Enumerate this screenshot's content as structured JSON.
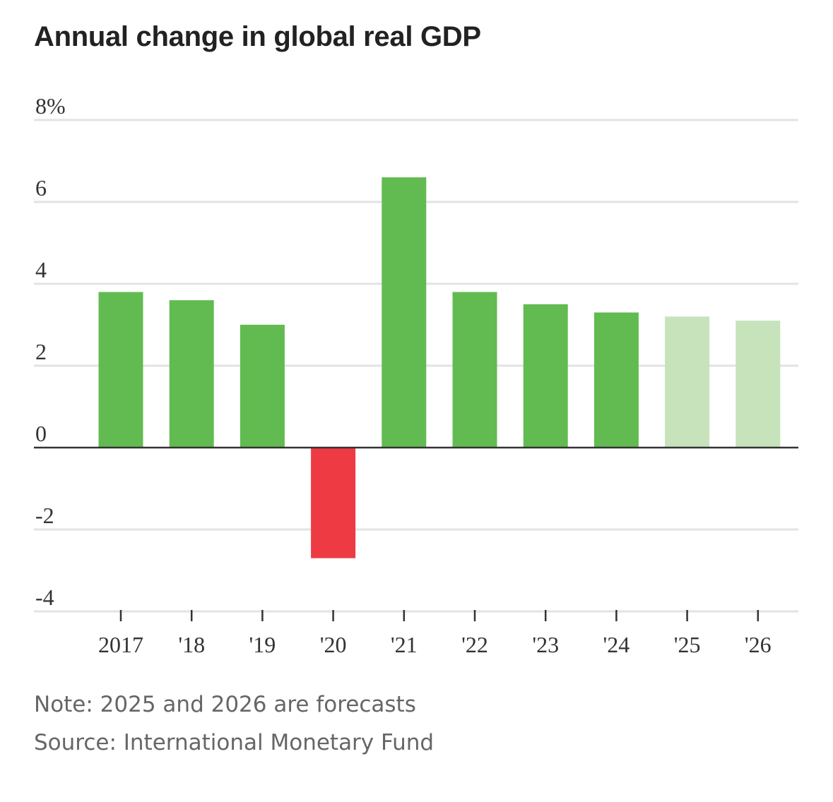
{
  "chart_data": {
    "type": "bar",
    "title": "Annual change in global real GDP",
    "categories": [
      "2017",
      "'18",
      "'19",
      "'20",
      "'21",
      "'22",
      "'23",
      "'24",
      "'25",
      "'26"
    ],
    "values": [
      3.8,
      3.6,
      3.0,
      -2.7,
      6.6,
      3.8,
      3.5,
      3.3,
      3.2,
      3.1
    ],
    "forecast": [
      false,
      false,
      false,
      false,
      false,
      false,
      false,
      false,
      true,
      true
    ],
    "ylim": [
      -4,
      8
    ],
    "yticks": [
      8,
      6,
      4,
      2,
      0,
      -2,
      -4
    ],
    "ytick_labels": [
      "8%",
      "6",
      "4",
      "2",
      "0",
      "-2",
      "-4"
    ],
    "xlabel": "",
    "ylabel": "",
    "grid": true,
    "colors": {
      "positive": "#62bb51",
      "negative": "#ee3a43",
      "forecast": "#c6e3bb",
      "grid": "#e3e3e3",
      "zero_line": "#333333"
    }
  },
  "footer": {
    "note": "Note: 2025 and 2026 are forecasts",
    "source": "Source: International Monetary Fund"
  }
}
